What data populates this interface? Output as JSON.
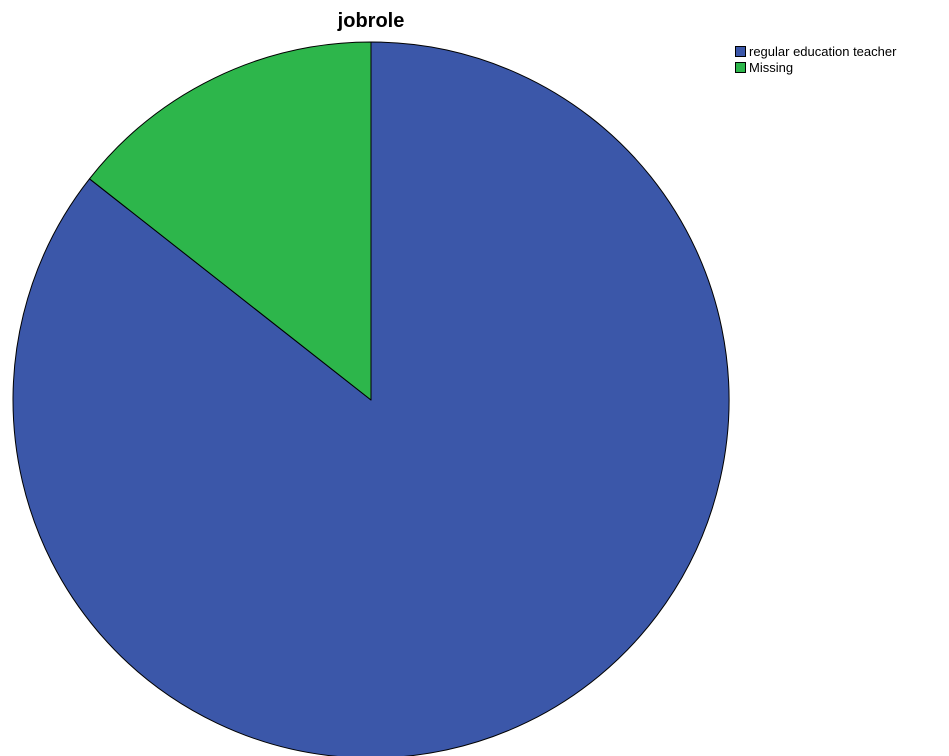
{
  "chart_data": {
    "type": "pie",
    "title": "jobrole",
    "slices": [
      {
        "label": "regular education teacher",
        "value": 85.6,
        "color": "#3b57a9"
      },
      {
        "label": "Missing",
        "value": 14.4,
        "color": "#2db64b"
      }
    ],
    "start_angle_deg": 0,
    "direction": "clockwise",
    "legend": {
      "placement": "top-right",
      "entries": [
        "regular education teacher",
        "Missing"
      ]
    }
  }
}
